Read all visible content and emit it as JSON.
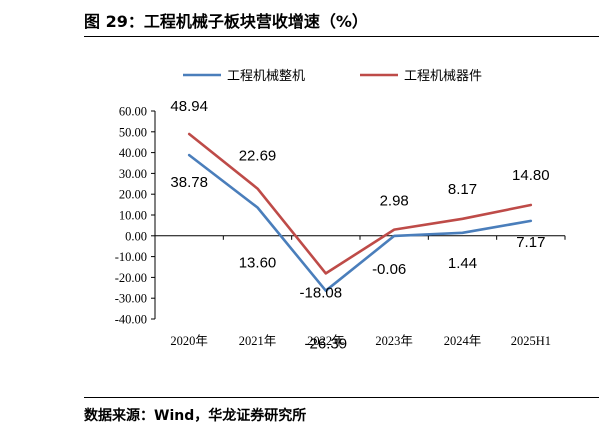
{
  "header": {
    "title": "图 29：工程机械子板块营收增速（%）"
  },
  "footer": {
    "source": "数据来源：Wind，华龙证券研究所"
  },
  "chart_data": {
    "type": "line",
    "title": "",
    "xlabel": "",
    "ylabel": "",
    "categories": [
      "2020年",
      "2021年",
      "2022年",
      "2023年",
      "2024年",
      "2025H1"
    ],
    "ylim": [
      -40,
      60
    ],
    "yticks": [
      "60.00",
      "50.00",
      "40.00",
      "30.00",
      "20.00",
      "10.00",
      "0.00",
      "-10.00",
      "-20.00",
      "-30.00",
      "-40.00"
    ],
    "grid": false,
    "legend": "top",
    "series": [
      {
        "name": "工程机械整机",
        "color": "#4a7ebb",
        "values": [
          38.78,
          13.6,
          -26.39,
          -0.06,
          1.44,
          7.17
        ],
        "labels": [
          "38.78",
          "13.60",
          "-26.39",
          "-0.06",
          "1.44",
          "7.17"
        ]
      },
      {
        "name": "工程机械器件",
        "color": "#be4b48",
        "values": [
          48.94,
          22.69,
          -18.08,
          2.98,
          8.17,
          14.8
        ],
        "labels": [
          "48.94",
          "22.69",
          "-18.08",
          "2.98",
          "8.17",
          "14.80"
        ]
      }
    ]
  }
}
